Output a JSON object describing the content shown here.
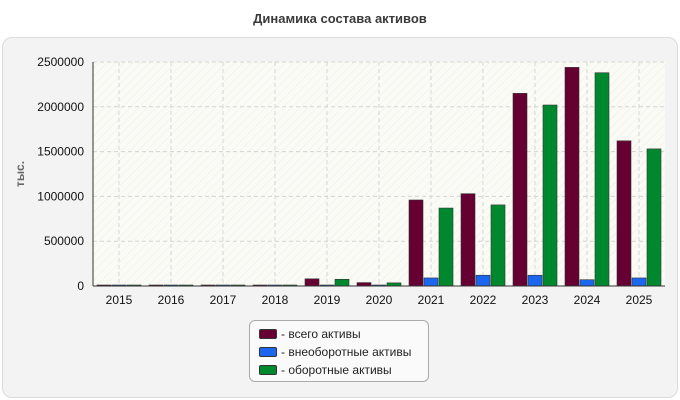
{
  "chart_data": {
    "type": "bar",
    "title": "Динамика состава активов",
    "ylabel": "тыс.",
    "xlabel": "",
    "ylim": [
      0,
      2500000
    ],
    "yticks": [
      0,
      500000,
      1000000,
      1500000,
      2000000,
      2500000
    ],
    "grid": true,
    "legend_position": "bottom",
    "categories": [
      "2015",
      "2016",
      "2017",
      "2018",
      "2019",
      "2020",
      "2021",
      "2022",
      "2023",
      "2024",
      "2025"
    ],
    "series": [
      {
        "name": "- всего активы",
        "color": "#660033",
        "values": [
          8000,
          9000,
          9000,
          10000,
          80000,
          38000,
          960000,
          1030000,
          2150000,
          2440000,
          1620000
        ]
      },
      {
        "name": "- внеоборотные активы",
        "color": "#1a66ee",
        "values": [
          3000,
          3000,
          3000,
          3000,
          5000,
          5000,
          90000,
          120000,
          120000,
          70000,
          90000
        ]
      },
      {
        "name": "- оборотные активы",
        "color": "#00882e",
        "values": [
          6000,
          7000,
          7000,
          8000,
          75000,
          35000,
          870000,
          905000,
          2020000,
          2380000,
          1530000
        ]
      }
    ]
  }
}
